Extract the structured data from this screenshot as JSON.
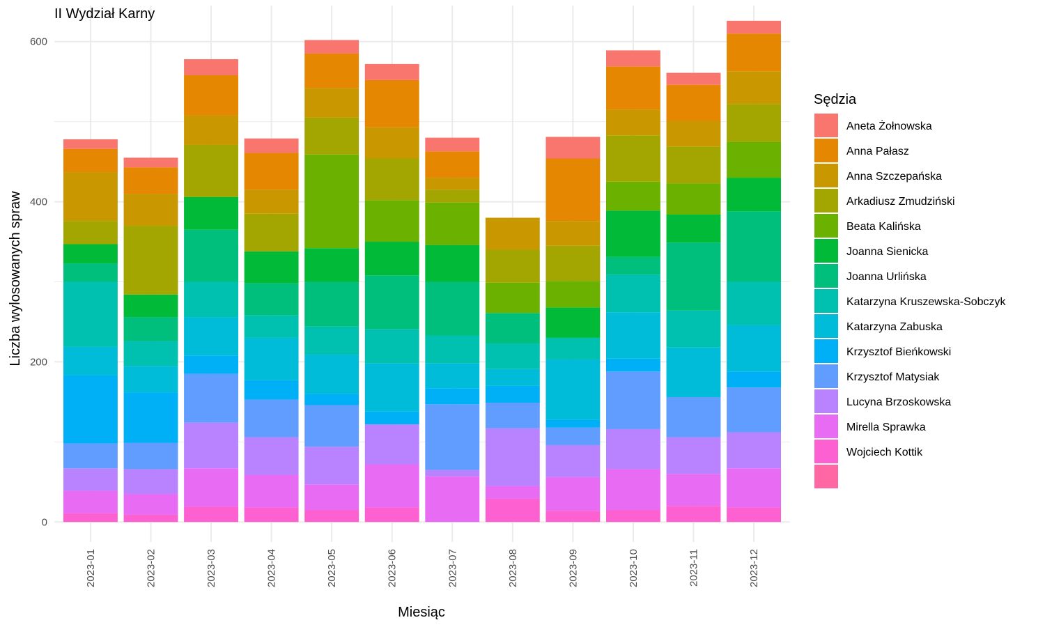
{
  "chart_data": {
    "type": "bar",
    "stacked": true,
    "title": "II Wydział Karny",
    "xlabel": "Miesiąc",
    "ylabel": "Liczba wylosowanych spraw",
    "ylim": [
      -25,
      645
    ],
    "yticks": [
      0,
      200,
      400,
      600
    ],
    "grid": true,
    "legend_title": "Sędzia",
    "legend_position": "right",
    "categories": [
      "2023-01",
      "2023-02",
      "2023-03",
      "2023-04",
      "2023-05",
      "2023-06",
      "2023-07",
      "2023-08",
      "2023-09",
      "2023-10",
      "2023-11",
      "2023-12"
    ],
    "series": [
      {
        "name": "Aneta Żołnowska",
        "color": "#F8766D",
        "values": [
          12,
          12,
          20,
          18,
          17,
          20,
          17,
          0,
          27,
          20,
          15,
          16
        ]
      },
      {
        "name": "Anna Pałasz",
        "color": "#E58700",
        "values": [
          29,
          33,
          50,
          46,
          43,
          59,
          33,
          0,
          78,
          54,
          45,
          47
        ]
      },
      {
        "name": "Anna Szczepańska",
        "color": "#C99800",
        "values": [
          61,
          40,
          37,
          30,
          37,
          39,
          15,
          40,
          31,
          32,
          32,
          41
        ]
      },
      {
        "name": "Arkadiusz Zmudziński",
        "color": "#A3A500",
        "values": [
          29,
          86,
          65,
          47,
          46,
          52,
          16,
          41,
          44,
          58,
          46,
          47
        ]
      },
      {
        "name": "Beata Kalińska",
        "color": "#6BB100",
        "values": [
          0,
          0,
          0,
          0,
          117,
          52,
          53,
          38,
          33,
          36,
          39,
          45
        ]
      },
      {
        "name": "Joanna Sienicka",
        "color": "#00BA38",
        "values": [
          24,
          28,
          41,
          40,
          42,
          42,
          46,
          0,
          38,
          58,
          35,
          42
        ]
      },
      {
        "name": "Joanna Urlińska",
        "color": "#00BF7D",
        "values": [
          23,
          30,
          65,
          40,
          56,
          67,
          67,
          38,
          0,
          22,
          85,
          88
        ]
      },
      {
        "name": "Katarzyna Kruszewska-Sobczyk",
        "color": "#00C0AF",
        "values": [
          81,
          31,
          44,
          28,
          35,
          43,
          35,
          32,
          27,
          47,
          46,
          54
        ]
      },
      {
        "name": "Katarzyna Zabuska",
        "color": "#00BCD8",
        "values": [
          36,
          33,
          48,
          53,
          49,
          60,
          31,
          21,
          75,
          58,
          62,
          58
        ]
      },
      {
        "name": "Krzysztof Bieńkowski",
        "color": "#00B0F6",
        "values": [
          85,
          63,
          23,
          24,
          14,
          16,
          20,
          21,
          10,
          16,
          0,
          20
        ]
      },
      {
        "name": "Krzysztof Matysiak",
        "color": "#619CFF",
        "values": [
          31,
          33,
          61,
          47,
          52,
          0,
          82,
          32,
          22,
          72,
          50,
          56
        ]
      },
      {
        "name": "Lucyna Brzoskowska",
        "color": "#B983FF",
        "values": [
          28,
          31,
          57,
          47,
          47,
          50,
          8,
          72,
          40,
          50,
          46,
          45
        ]
      },
      {
        "name": "Mirella Sprawka",
        "color": "#E76BF3",
        "values": [
          28,
          26,
          48,
          41,
          32,
          54,
          57,
          16,
          42,
          51,
          40,
          49
        ]
      },
      {
        "name": "Wojciech Kottik",
        "color": "#FD61D1",
        "values": [
          11,
          9,
          19,
          18,
          15,
          18,
          0,
          29,
          14,
          15,
          20,
          18
        ]
      },
      {
        "name": "",
        "color": "#FF67A4",
        "values": [
          0,
          0,
          0,
          0,
          0,
          0,
          0,
          0,
          0,
          0,
          0,
          0
        ]
      }
    ]
  }
}
